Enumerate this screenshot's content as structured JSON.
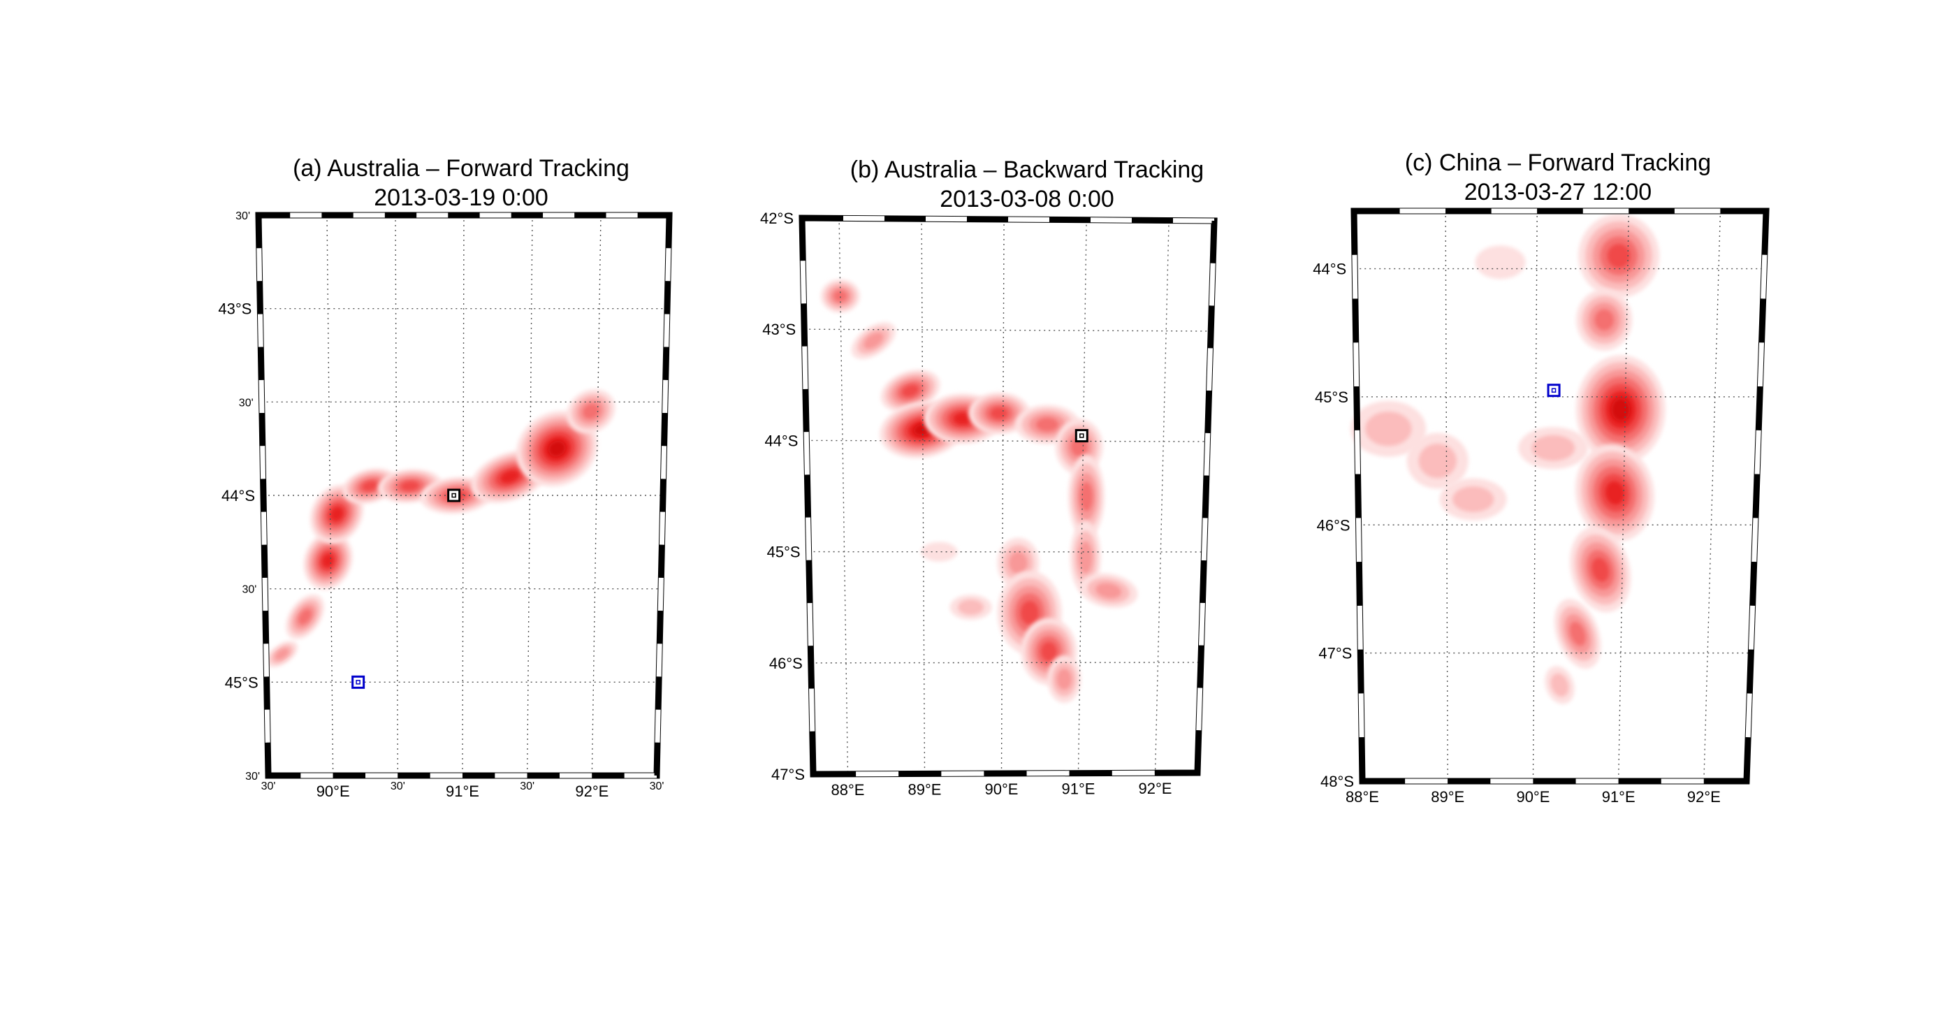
{
  "panels": [
    {
      "id": "a",
      "title": "(a) Australia – Forward Tracking",
      "date": "2013-03-19 0:00",
      "lat_labels": [
        {
          "text": "30'",
          "minor": true
        },
        {
          "text": "43°S",
          "minor": false
        },
        {
          "text": "30'",
          "minor": true
        },
        {
          "text": "44°S",
          "minor": false
        },
        {
          "text": "30'",
          "minor": true
        },
        {
          "text": "45°S",
          "minor": false
        },
        {
          "text": "30'",
          "minor": true
        }
      ],
      "lon_labels": [
        {
          "text": "30'",
          "minor": true
        },
        {
          "text": "90°E",
          "minor": false
        },
        {
          "text": "30'",
          "minor": true
        },
        {
          "text": "91°E",
          "minor": false
        },
        {
          "text": "30'",
          "minor": true
        },
        {
          "text": "92°E",
          "minor": false
        },
        {
          "text": "30'",
          "minor": true
        }
      ],
      "markers": [
        {
          "name": "end-position-marker",
          "color": "#000000",
          "lon": 90.93,
          "lat": -44.0
        },
        {
          "name": "start-position-marker",
          "color": "#0000cc",
          "lon": 90.2,
          "lat": -45.0
        }
      ]
    },
    {
      "id": "b",
      "title": "(b) Australia – Backward Tracking",
      "date": "2013-03-08 0:00",
      "lat_labels": [
        {
          "text": "42°S",
          "minor": false
        },
        {
          "text": "43°S",
          "minor": false
        },
        {
          "text": "44°S",
          "minor": false
        },
        {
          "text": "45°S",
          "minor": false
        },
        {
          "text": "46°S",
          "minor": false
        },
        {
          "text": "47°S",
          "minor": false
        }
      ],
      "lon_labels": [
        {
          "text": "88°E",
          "minor": false
        },
        {
          "text": "89°E",
          "minor": false
        },
        {
          "text": "90°E",
          "minor": false
        },
        {
          "text": "91°E",
          "minor": false
        },
        {
          "text": "92°E",
          "minor": false
        }
      ],
      "markers": [
        {
          "name": "reference-position-marker",
          "color": "#000000",
          "lon": 90.98,
          "lat": -43.95
        }
      ]
    },
    {
      "id": "c",
      "title": "(c) China – Forward Tracking",
      "date": "2013-03-27 12:00",
      "lat_labels": [
        {
          "text": "44°S",
          "minor": false
        },
        {
          "text": "45°S",
          "minor": false
        },
        {
          "text": "46°S",
          "minor": false
        },
        {
          "text": "47°S",
          "minor": false
        },
        {
          "text": "48°S",
          "minor": false
        }
      ],
      "lon_labels": [
        {
          "text": "88°E",
          "minor": false
        },
        {
          "text": "89°E",
          "minor": false
        },
        {
          "text": "90°E",
          "minor": false
        },
        {
          "text": "91°E",
          "minor": false
        },
        {
          "text": "92°E",
          "minor": false
        }
      ],
      "markers": [
        {
          "name": "start-position-marker",
          "color": "#0000cc",
          "lon": 90.2,
          "lat": -44.95
        }
      ]
    }
  ],
  "colors": {
    "density_ramp": [
      "#fde0e0",
      "#fbbcbc",
      "#f89898",
      "#f47070",
      "#f04848",
      "#e82222",
      "#d41010"
    ],
    "grid": "#555555",
    "frame_dark": "#000000",
    "frame_light": "#ffffff"
  }
}
